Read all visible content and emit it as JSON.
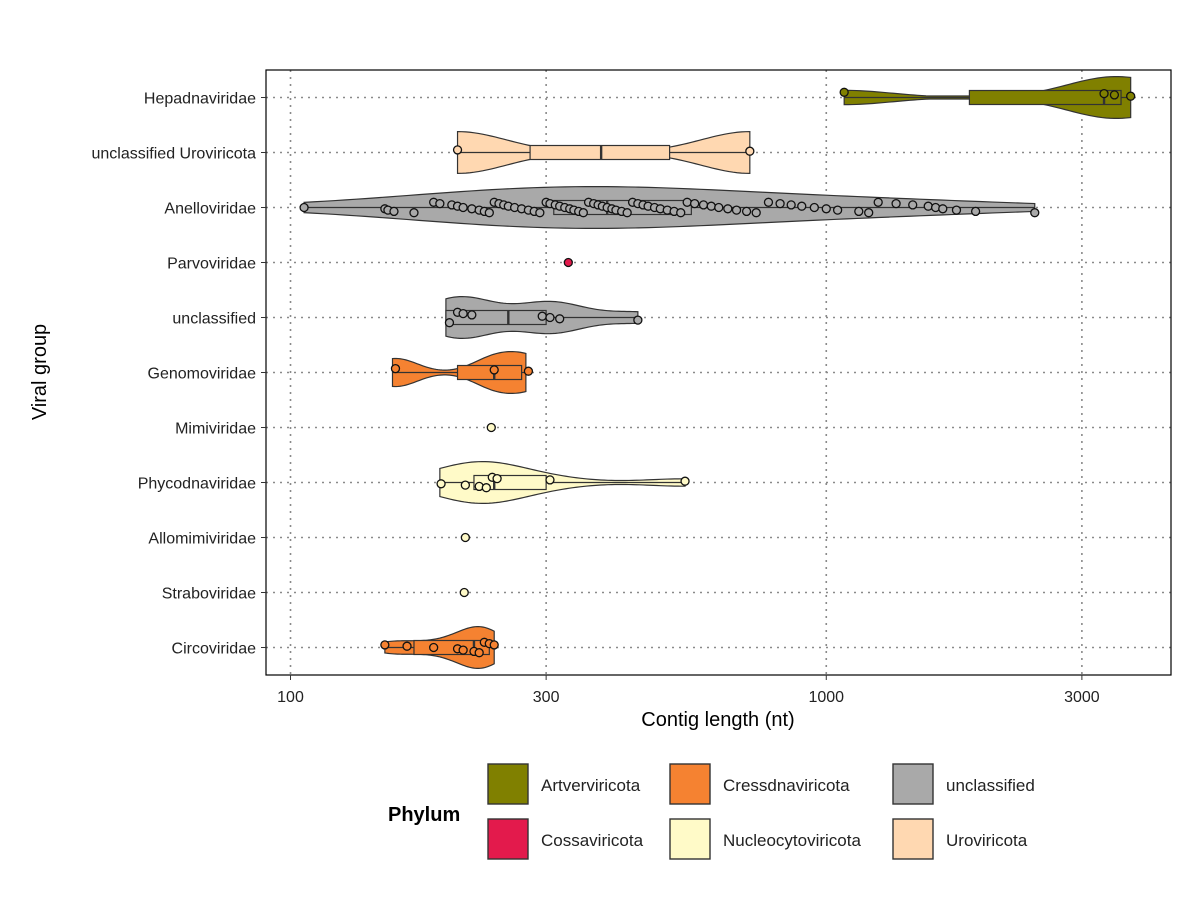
{
  "chart_data": {
    "type": "violin",
    "x_scale": "log10",
    "xlim": [
      90,
      4400
    ],
    "xlabel": "Contig length (nt)",
    "ylabel": "Viral group",
    "x_ticks": [
      100,
      300,
      1000,
      3000
    ],
    "x_tick_labels": [
      "100",
      "300",
      "1000",
      "3000"
    ],
    "grid": "dotted",
    "categories": [
      "Hepadnaviridae",
      "unclassified Uroviricota",
      "Anelloviridae",
      "Parvoviridae",
      "unclassified",
      "Genomoviridae",
      "Mimiviridae",
      "Phycodnaviridae",
      "Allomimiviridae",
      "Straboviridae",
      "Circoviridae"
    ],
    "groups": [
      {
        "name": "Hepadnaviridae",
        "phylum": "Artverviricota",
        "min": 1080,
        "q1": 1850,
        "median": 3300,
        "q3": 3550,
        "max": 3700,
        "points": [
          1080,
          3300,
          3450,
          3700
        ]
      },
      {
        "name": "unclassified Uroviricota",
        "phylum": "Uroviricota",
        "min": 205,
        "q1": 280,
        "median": 380,
        "q3": 510,
        "max": 720,
        "points": [
          205,
          720
        ]
      },
      {
        "name": "Anelloviridae",
        "phylum": "unclassified",
        "min": 106,
        "q1": 310,
        "median": 390,
        "q3": 560,
        "max": 2450,
        "points": [
          106,
          150,
          152,
          156,
          170,
          185,
          190,
          200,
          205,
          210,
          218,
          225,
          230,
          235,
          240,
          245,
          250,
          255,
          262,
          270,
          278,
          285,
          292,
          300,
          305,
          312,
          318,
          325,
          332,
          338,
          345,
          352,
          360,
          368,
          375,
          382,
          390,
          398,
          405,
          415,
          425,
          435,
          445,
          455,
          465,
          478,
          490,
          505,
          520,
          535,
          550,
          568,
          590,
          610,
          630,
          655,
          680,
          710,
          740,
          780,
          820,
          860,
          900,
          950,
          1000,
          1050,
          1150,
          1200,
          1250,
          1350,
          1450,
          1550,
          1600,
          1650,
          1750,
          1900,
          2450
        ]
      },
      {
        "name": "Parvoviridae",
        "phylum": "Cossaviricota",
        "min": 330,
        "q1": 330,
        "median": 330,
        "q3": 330,
        "max": 330,
        "points": [
          330
        ]
      },
      {
        "name": "unclassified",
        "phylum": "unclassified",
        "min": 195,
        "q1": 195,
        "median": 255,
        "q3": 300,
        "max": 445,
        "points": [
          198,
          205,
          210,
          218,
          295,
          305,
          318,
          445
        ]
      },
      {
        "name": "Genomoviridae",
        "phylum": "Cressdnaviricota",
        "min": 155,
        "q1": 205,
        "median": 240,
        "q3": 270,
        "max": 275,
        "points": [
          157,
          240,
          278
        ]
      },
      {
        "name": "Mimiviridae",
        "phylum": "Nucleocytoviricota",
        "min": 237,
        "q1": 237,
        "median": 237,
        "q3": 237,
        "max": 237,
        "points": [
          237
        ]
      },
      {
        "name": "Phycodnaviridae",
        "phylum": "Nucleocytoviricota",
        "min": 190,
        "q1": 220,
        "median": 240,
        "q3": 300,
        "max": 545,
        "points": [
          191,
          212,
          225,
          232,
          238,
          243,
          305,
          545
        ]
      },
      {
        "name": "Allomimiviridae",
        "phylum": "Nucleocytoviricota",
        "min": 212,
        "q1": 212,
        "median": 212,
        "q3": 212,
        "max": 212,
        "points": [
          212
        ]
      },
      {
        "name": "Straboviridae",
        "phylum": "Nucleocytoviricota",
        "min": 211,
        "q1": 211,
        "median": 211,
        "q3": 211,
        "max": 211,
        "points": [
          211
        ]
      },
      {
        "name": "Circoviridae",
        "phylum": "Cressdnaviricota",
        "min": 150,
        "q1": 170,
        "median": 220,
        "q3": 235,
        "max": 240,
        "points": [
          150,
          165,
          185,
          205,
          210,
          220,
          225,
          230,
          235,
          240
        ]
      }
    ],
    "legend": {
      "title": "Phylum",
      "position": "bottom",
      "entries": [
        {
          "label": "Artverviricota",
          "color": "#808000"
        },
        {
          "label": "Cossaviricota",
          "color": "#e31a4c"
        },
        {
          "label": "Cressdnaviricota",
          "color": "#f58231"
        },
        {
          "label": "Nucleocytoviricota",
          "color": "#fffac8"
        },
        {
          "label": "unclassified",
          "color": "#a9a9a9"
        },
        {
          "label": "Uroviricota",
          "color": "#ffd8b1"
        }
      ]
    }
  }
}
